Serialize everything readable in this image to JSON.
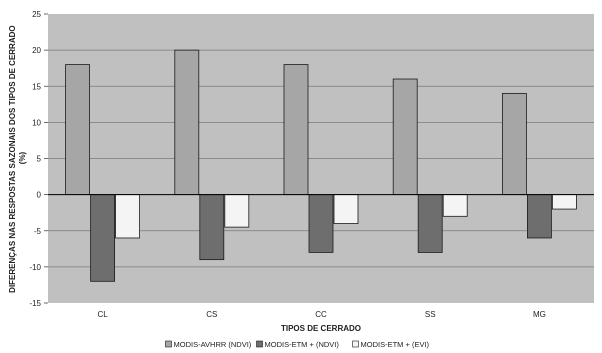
{
  "chart_data": {
    "type": "bar",
    "categories": [
      "CL",
      "CS",
      "CC",
      "SS",
      "MG"
    ],
    "series": [
      {
        "name": "MODIS-AVHRR (NDVI)",
        "values": [
          18,
          20,
          18,
          16,
          14
        ],
        "color": "#a6a6a6"
      },
      {
        "name": "MODIS-ETM + (NDVI)",
        "values": [
          -12,
          -9,
          -8,
          -8,
          -6
        ],
        "color": "#6e6e6e"
      },
      {
        "name": "MODIS-ETM + (EVI)",
        "values": [
          -6,
          -4.5,
          -4,
          -3,
          -2
        ],
        "color": "#f4f4f4"
      }
    ],
    "title": "",
    "xlabel": "TIPOS DE CERRADO",
    "ylabel_lines": [
      "DIFERENÇAS NAS RESPOSTAS SAZONAIS DOS TIPOS DE CERRADO",
      "(%)"
    ],
    "ylim": [
      -15,
      25
    ],
    "yticks": [
      -15,
      -10,
      -5,
      0,
      5,
      10,
      15,
      20,
      25
    ],
    "grid": true,
    "legend": "bottom-center",
    "plot_background": "#c0c0c0"
  }
}
